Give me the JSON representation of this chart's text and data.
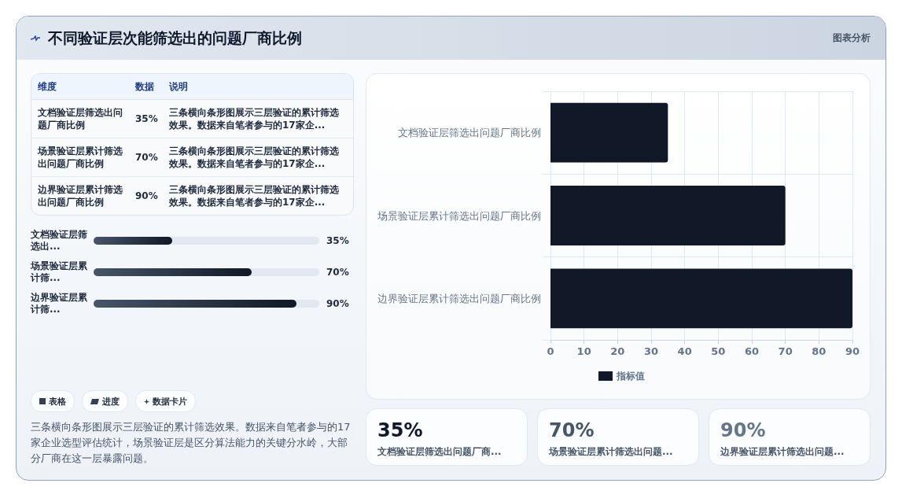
{
  "chart_data": [
    {
      "type": "other",
      "title": "不同验证层次能筛选出的问题厂商比例",
      "categories": [
        "文档验证层筛选出问题厂商比例",
        "场景验证层累计筛选出问题厂商比例",
        "边界验证层累计筛选出问题厂商比例"
      ],
      "value_labels": [
        "35%",
        "70%",
        "90%"
      ],
      "annotations": [
        "维度",
        "数据",
        "说明",
        "三条横向条形图展示三层验证的累计筛选效果。数据来自笔者参与的17家企...",
        "三条横向条形图展示三层验证的累计筛选效果。数据来自笔者参与的17家企...",
        "三条横向条形图展示三层验证的累计筛选效果。数据来自笔者参与的17家企..."
      ]
    },
    {
      "type": "bar",
      "orientation": "horizontal",
      "categories": [
        "文档验证层筛选出...",
        "场景验证层累计筛...",
        "边界验证层累计筛..."
      ],
      "values": [
        35,
        70,
        90
      ],
      "value_labels": [
        "35%",
        "70%",
        "90%"
      ],
      "xlim": [
        0,
        100
      ],
      "color": "#111827"
    },
    {
      "type": "bar",
      "orientation": "horizontal",
      "categories": [
        "文档验证层筛选出问题厂商比例",
        "场景验证层累计筛选出问题厂商比例",
        "边界验证层累计筛选出问题厂商比例"
      ],
      "series": [
        {
          "name": "指标值",
          "color": "#111827",
          "values": [
            35,
            70,
            90
          ]
        }
      ],
      "xlim": [
        0,
        90
      ],
      "xticks": [
        0,
        10,
        20,
        30,
        40,
        50,
        60,
        70,
        80,
        90
      ],
      "grid": true,
      "legend": "bottom",
      "annotations": [
        "图表分析",
        "表格",
        "进度",
        "数据卡片",
        "三条横向条形图展示三层验证的累计筛选效果。数据来自笔者参与的17家企业选型评估统计，场景验证层是区分算法能力的关键分水岭，大部分厂商在这一层暴露问题。"
      ]
    },
    {
      "type": "other",
      "categories": [
        "文档验证层筛选出问题厂商...",
        "场景验证层累计筛选出问题...",
        "边界验证层累计筛选出问题..."
      ],
      "value_labels": [
        "35%",
        "70%",
        "90%"
      ]
    }
  ]
}
